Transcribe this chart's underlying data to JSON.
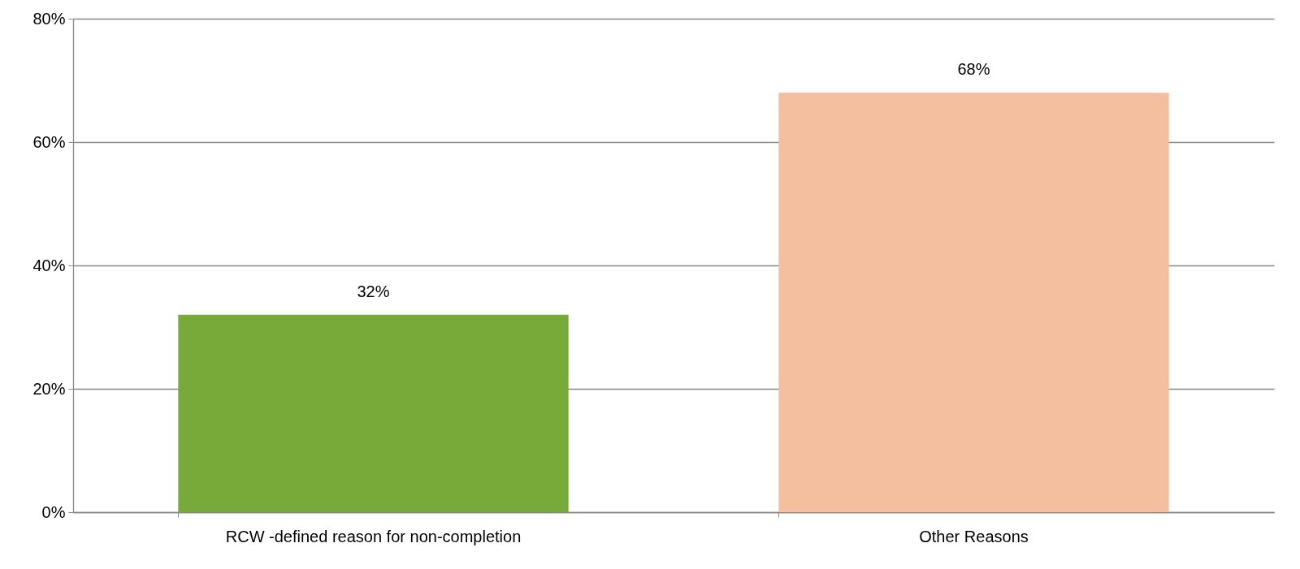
{
  "chart_data": {
    "type": "bar",
    "categories": [
      "RCW -defined reason for non-completion",
      "Other Reasons"
    ],
    "values": [
      32,
      68
    ],
    "colors": [
      "#78aa3a",
      "#f4bf9e"
    ],
    "value_labels": [
      "32%",
      "68%"
    ],
    "ylim": [
      0,
      80
    ],
    "yticks": [
      {
        "value": 0,
        "label": "0%"
      },
      {
        "value": 20,
        "label": "20%"
      },
      {
        "value": 40,
        "label": "40%"
      },
      {
        "value": 60,
        "label": "60%"
      },
      {
        "value": 80,
        "label": "80%"
      }
    ],
    "grid": "y"
  }
}
